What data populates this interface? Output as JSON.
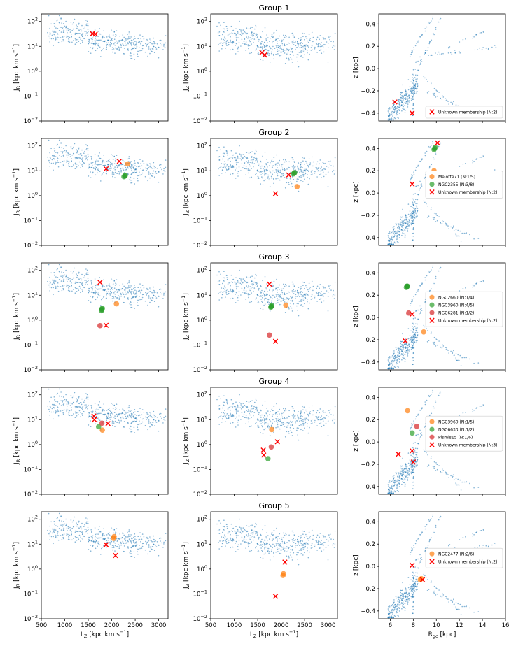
{
  "figure": {
    "groups": [
      "Group 1",
      "Group 2",
      "Group 3",
      "Group 4",
      "Group 5"
    ],
    "col1_ylabel": "J_R [kpc km s^-1]",
    "col2_ylabel": "J_Z [kpc km s^-1]",
    "col3_ylabel": "z [kpc]",
    "col12_xlabel": "L_Z [kpc km s^-1]",
    "col3_xlabel": "R_gc [kpc]"
  },
  "chart_data": {
    "type": "scatter",
    "colors": {
      "background": "#1f77b4",
      "orange": "#ff7f0e",
      "green": "#2ca02c",
      "red_cluster": "#d62728",
      "unknown": "#ff0000"
    },
    "axes": {
      "lz": {
        "range": [
          500,
          3200
        ],
        "ticks": [
          500,
          1000,
          1500,
          2000,
          2500,
          3000
        ],
        "tick_labels": [
          "500",
          "1000",
          "1500",
          "2000",
          "2500",
          "3000"
        ]
      },
      "action": {
        "scale": "log",
        "range": [
          0.01,
          200
        ],
        "ticks": [
          0.01,
          0.1,
          1,
          10,
          100
        ],
        "tick_labels": [
          "10^-2",
          "10^-1",
          "10^0",
          "10^1",
          "10^2"
        ]
      },
      "rgc": {
        "range": [
          5,
          16
        ],
        "ticks": [
          6,
          8,
          10,
          12,
          14,
          16
        ],
        "tick_labels": [
          "6",
          "8",
          "10",
          "12",
          "14",
          "16"
        ]
      },
      "z": {
        "range": [
          -0.47,
          0.49
        ],
        "ticks": [
          -0.4,
          -0.2,
          0.0,
          0.2,
          0.4
        ],
        "tick_labels": [
          "-0.4",
          "-0.2",
          "0.0",
          "0.2",
          "0.4"
        ]
      }
    },
    "groups": [
      {
        "title": "Group 1",
        "clusters": [],
        "unknown": {
          "label": "Unknown membership (N:2)",
          "lz": [
            1590,
            1650
          ],
          "jr": [
            32,
            31
          ],
          "jz": [
            5.6,
            4.5
          ],
          "rgc": [
            6.4,
            7.9
          ],
          "z": [
            -0.3,
            -0.4
          ]
        }
      },
      {
        "title": "Group 2",
        "clusters": [
          {
            "label": "Melotte71 (N:1/5)",
            "color": "orange",
            "lz": [
              2340
            ],
            "jr": [
              19
            ],
            "jz": [
              2.3
            ],
            "rgc": [
              9.8
            ],
            "z": [
              0.2
            ]
          },
          {
            "label": "NGC2355 (N:3/8)",
            "color": "green",
            "lz": [
              2260,
              2280,
              2290
            ],
            "jr": [
              5.8,
              6.2,
              6.6
            ],
            "jz": [
              7.5,
              8.0,
              8.5
            ],
            "rgc": [
              9.8,
              9.85,
              9.9
            ],
            "z": [
              0.39,
              0.4,
              0.41
            ]
          }
        ],
        "unknown": {
          "label": "Unknown membership (N:2)",
          "lz": [
            1880,
            2160
          ],
          "jr": [
            12,
            24
          ],
          "jz": [
            1.2,
            6.8
          ],
          "rgc": [
            7.9,
            10.1
          ],
          "z": [
            0.08,
            0.45
          ]
        }
      },
      {
        "title": "Group 3",
        "clusters": [
          {
            "label": "NGC2660 (N:1/4)",
            "color": "orange",
            "lz": [
              2100
            ],
            "jr": [
              4.5
            ],
            "jz": [
              4.0
            ],
            "rgc": [
              8.9
            ],
            "z": [
              -0.13
            ]
          },
          {
            "label": "NGC3960 (N:4/5)",
            "color": "green",
            "lz": [
              1780,
              1790,
              1790,
              1800
            ],
            "jr": [
              2.4,
              2.6,
              2.8,
              3.0
            ],
            "jz": [
              3.3,
              3.5,
              3.6,
              3.8
            ],
            "rgc": [
              7.4,
              7.45,
              7.45,
              7.5
            ],
            "z": [
              0.27,
              0.28,
              0.28,
              0.28
            ]
          },
          {
            "label": "NGC6281 (N:1/2)",
            "color": "red_cluster",
            "lz": [
              1750
            ],
            "jr": [
              0.6
            ],
            "jz": [
              0.25
            ],
            "rgc": [
              7.6
            ],
            "z": [
              0.04
            ]
          }
        ],
        "unknown": {
          "label": "Unknown membership (N:2)",
          "lz": [
            1750,
            1880
          ],
          "jr": [
            33,
            0.62
          ],
          "jz": [
            28,
            0.14
          ],
          "rgc": [
            7.9,
            7.3
          ],
          "z": [
            0.03,
            -0.21
          ]
        }
      },
      {
        "title": "Group 4",
        "clusters": [
          {
            "label": "NGC3960 (N:1/5)",
            "color": "orange",
            "lz": [
              1800
            ],
            "jr": [
              3.8
            ],
            "jz": [
              4.0
            ],
            "rgc": [
              7.5
            ],
            "z": [
              0.28
            ]
          },
          {
            "label": "NGC6633 (N:1/2)",
            "color": "green",
            "lz": [
              1720
            ],
            "jr": [
              5.2
            ],
            "jz": [
              0.27
            ],
            "rgc": [
              7.9
            ],
            "z": [
              0.08
            ]
          },
          {
            "label": "Pismis15 (N:1/6)",
            "color": "red_cluster",
            "lz": [
              1790
            ],
            "jr": [
              7.2
            ],
            "jz": [
              0.8
            ],
            "rgc": [
              8.3
            ],
            "z": [
              0.14
            ]
          }
        ],
        "unknown": {
          "label": "Unknown membership (N:3)",
          "lz": [
            1620,
            1630,
            1920
          ],
          "jr": [
            14,
            10,
            7
          ],
          "jz": [
            0.6,
            0.38,
            1.3
          ],
          "rgc": [
            6.7,
            7.9,
            8.0
          ],
          "z": [
            -0.11,
            -0.08,
            -0.18
          ]
        }
      },
      {
        "title": "Group 5",
        "clusters": [
          {
            "label": "NGC2477 (N:2/6)",
            "color": "orange",
            "lz": [
              2040,
              2050
            ],
            "jr": [
              17,
              20
            ],
            "jz": [
              0.55,
              0.65
            ],
            "rgc": [
              8.6,
              8.7
            ],
            "z": [
              -0.12,
              -0.11
            ]
          }
        ],
        "unknown": {
          "label": "Unknown membership (N:2)",
          "lz": [
            1880,
            2080
          ],
          "jr": [
            9.5,
            3.5
          ],
          "jz": [
            0.08,
            1.9
          ],
          "rgc": [
            7.9,
            8.8
          ],
          "z": [
            0.01,
            -0.12
          ]
        }
      }
    ],
    "background_stars": {
      "marker": "small dots",
      "color": "background",
      "approximate_count": 520
    }
  }
}
